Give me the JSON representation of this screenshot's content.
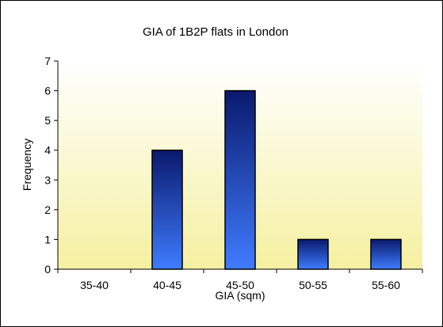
{
  "chart_data": {
    "type": "bar",
    "title": "GIA of 1B2P flats in London",
    "xlabel": "GIA (sqm)",
    "ylabel": "Frequency",
    "categories": [
      "35-40",
      "40-45",
      "45-50",
      "50-55",
      "55-60"
    ],
    "values": [
      0,
      4,
      6,
      1,
      1
    ],
    "ylim": [
      0,
      7
    ],
    "yticks": [
      "0",
      "1",
      "2",
      "3",
      "4",
      "5",
      "6",
      "7"
    ],
    "grid": false,
    "legend": "none",
    "colors": {
      "bar_top": "#0a1a6e",
      "bar_bottom": "#3f7cff",
      "plot_bg_top": "#ffffff",
      "plot_bg_bottom": "#f5f0a0",
      "axis": "#000000"
    }
  }
}
